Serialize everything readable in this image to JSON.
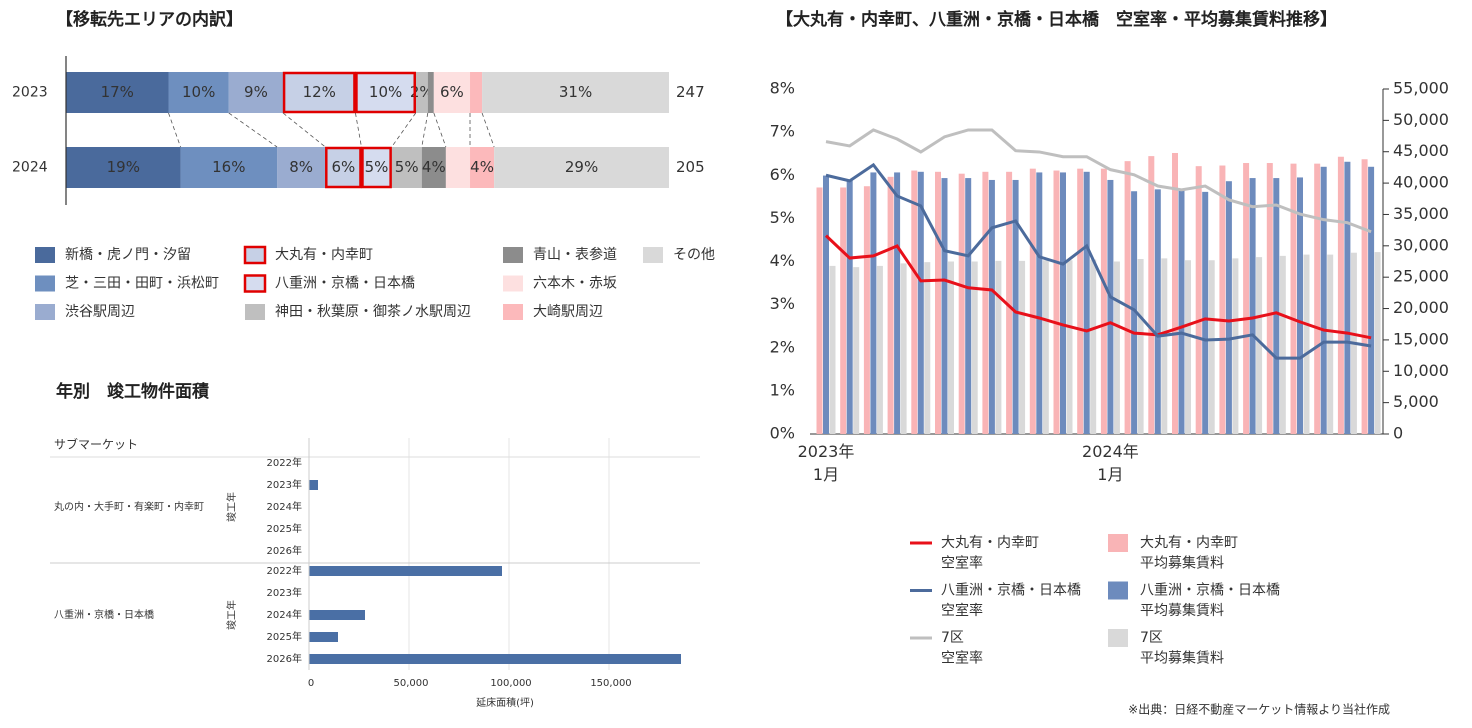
{
  "chart_data": [
    {
      "type": "stacked_bar_100",
      "title": "【移転先エリアの内訳】",
      "categories": [
        "2023",
        "2024"
      ],
      "totals": [
        247,
        205
      ],
      "series": [
        {
          "name": "新橋・虎ノ門・汐留",
          "color": "#4a6a9c",
          "values": [
            17,
            19
          ],
          "value_labels": [
            "17%",
            "19%"
          ]
        },
        {
          "name": "芝・三田・田町・浜松町",
          "color": "#6e8fbf",
          "values": [
            10,
            16
          ],
          "value_labels": [
            "10%",
            "16%"
          ]
        },
        {
          "name": "渋谷駅周辺",
          "color": "#9aacd0",
          "values": [
            9,
            8
          ],
          "value_labels": [
            "9%",
            "8%"
          ]
        },
        {
          "name": "大丸有・内幸町",
          "color": "#c6d0e6",
          "outline": "#e00000",
          "values": [
            12,
            6
          ],
          "value_labels": [
            "12%",
            "6%"
          ]
        },
        {
          "name": "八重洲・京橋・日本橋",
          "color": "#d5dcef",
          "outline": "#e00000",
          "values": [
            10,
            5
          ],
          "value_labels": [
            "10%",
            "5%"
          ]
        },
        {
          "name": "神田・秋葉原・御茶ノ水駅周辺",
          "color": "#bfbfbf",
          "values": [
            2,
            5
          ],
          "value_labels": [
            "2%",
            "5%"
          ]
        },
        {
          "name": "青山・表参道",
          "color": "#8c8c8c",
          "values": [
            1,
            4
          ],
          "value_labels": [
            null,
            "4%"
          ]
        },
        {
          "name": "六本木・赤坂",
          "color": "#fde0e0",
          "values": [
            6,
            4
          ],
          "value_labels": [
            "6%",
            null
          ]
        },
        {
          "name": "大崎駅周辺",
          "color": "#fcb9bb",
          "values": [
            2,
            4
          ],
          "value_labels": [
            null,
            "4%"
          ]
        },
        {
          "name": "その他",
          "color": "#d9d9d9",
          "values": [
            31,
            29
          ],
          "value_labels": [
            "31%",
            "29%"
          ]
        }
      ]
    },
    {
      "type": "grouped_hbar",
      "title": "年別　竣工物件面積",
      "header": "サブマーケット",
      "group_axis_label": "竣工年",
      "xlabel": "延床面積(坪)",
      "color": "#4a6fa5",
      "grid": true,
      "xlim": [
        0,
        195000
      ],
      "xticks": [
        0,
        {
          "value": 50000,
          "label": "50,000"
        },
        {
          "value": 100000,
          "label": "100,000"
        },
        {
          "value": 150000,
          "label": "150,000"
        }
      ],
      "groups": [
        {
          "name": "丸の内・大手町・有楽町・内幸町",
          "categories": [
            "2022年",
            "2023年",
            "2024年",
            "2025年",
            "2026年"
          ],
          "values": [
            null,
            4500,
            null,
            null,
            null
          ]
        },
        {
          "name": "八重洲・京橋・日本橋",
          "categories": [
            "2022年",
            "2023年",
            "2024年",
            "2025年",
            "2026年"
          ],
          "values": [
            96500,
            null,
            28000,
            14500,
            186000
          ]
        }
      ]
    },
    {
      "type": "combo",
      "title": "【大丸有・内幸町、八重洲・京橋・日本橋　空室率・平均募集賃料推移】",
      "source": "※出典：日経不動産マーケット情報より当社作成",
      "categories": [
        "2023年\n1月",
        null,
        null,
        null,
        null,
        null,
        null,
        null,
        null,
        null,
        null,
        null,
        "2024年\n1月",
        null,
        null,
        null,
        null,
        null,
        null,
        null,
        null,
        null,
        null,
        null
      ],
      "ylim": [
        0,
        8
      ],
      "yticks": [
        {
          "value": 0,
          "label": "0%"
        },
        {
          "value": 1,
          "label": "1%"
        },
        {
          "value": 2,
          "label": "2%"
        },
        {
          "value": 3,
          "label": "3%"
        },
        {
          "value": 4,
          "label": "4%"
        },
        {
          "value": 5,
          "label": "5%"
        },
        {
          "value": 6,
          "label": "6%"
        },
        {
          "value": 7,
          "label": "7%"
        },
        {
          "value": 8,
          "label": "8%"
        }
      ],
      "y2lim": [
        0,
        55000
      ],
      "y2ticks": [
        0,
        {
          "value": 5000,
          "label": "5,000"
        },
        {
          "value": 10000,
          "label": "10,000"
        },
        {
          "value": 15000,
          "label": "15,000"
        },
        {
          "value": 20000,
          "label": "20,000"
        },
        {
          "value": 25000,
          "label": "25,000"
        },
        {
          "value": 30000,
          "label": "30,000"
        },
        {
          "value": 35000,
          "label": "35,000"
        },
        {
          "value": 40000,
          "label": "40,000"
        },
        {
          "value": 45000,
          "label": "45,000"
        },
        {
          "value": 50000,
          "label": "50,000"
        },
        {
          "value": 55000,
          "label": "55,000"
        }
      ],
      "series": [
        {
          "name": "大丸有・内幸町\n空室率",
          "kind": "line",
          "axis": "y",
          "color": "#e8101a",
          "values": [
            4.6,
            4.08,
            4.13,
            4.36,
            3.55,
            3.57,
            3.39,
            3.34,
            2.83,
            2.69,
            2.53,
            2.39,
            2.58,
            2.34,
            2.3,
            2.48,
            2.67,
            2.62,
            2.69,
            2.81,
            2.6,
            2.41,
            2.34,
            2.23
          ]
        },
        {
          "name": "大丸有・内幸町\n平均募集賃料",
          "kind": "bar",
          "axis": "y2",
          "color": "#f9b4b6",
          "values": [
            39300,
            39300,
            39500,
            41000,
            42000,
            41800,
            41500,
            41800,
            41800,
            42300,
            42000,
            42300,
            42300,
            43500,
            44300,
            44800,
            42700,
            42800,
            43200,
            43200,
            43100,
            43100,
            44200,
            43800
          ]
        },
        {
          "name": "八重洲・京橋・日本橋\n空室率",
          "kind": "line",
          "axis": "y",
          "color": "#4c6b9c",
          "values": [
            6.0,
            5.87,
            6.24,
            5.52,
            5.29,
            4.25,
            4.13,
            4.78,
            4.94,
            4.11,
            3.94,
            4.36,
            3.18,
            2.88,
            2.27,
            2.34,
            2.18,
            2.2,
            2.3,
            1.76,
            1.76,
            2.13,
            2.13,
            2.04
          ]
        },
        {
          "name": "八重洲・京橋・日本橋\n平均募集賃料",
          "kind": "bar",
          "axis": "y2",
          "color": "#6d8bbd",
          "values": [
            41200,
            40400,
            41700,
            41700,
            41800,
            40800,
            40800,
            40500,
            40500,
            41700,
            41700,
            41800,
            40500,
            38700,
            39000,
            38900,
            38600,
            40300,
            40800,
            40800,
            40900,
            42600,
            43400,
            42600
          ]
        },
        {
          "name": "7区\n空室率",
          "kind": "line",
          "axis": "y",
          "color": "#bfbfbf",
          "values": [
            6.78,
            6.68,
            7.05,
            6.84,
            6.54,
            6.89,
            7.05,
            7.05,
            6.57,
            6.54,
            6.43,
            6.43,
            6.13,
            6.01,
            5.75,
            5.66,
            5.75,
            5.43,
            5.27,
            5.31,
            5.1,
            4.97,
            4.9,
            4.69
          ]
        },
        {
          "name": "7区\n平均募集賃料",
          "kind": "bar",
          "axis": "y2",
          "color": "#d9d9d9",
          "values": [
            26800,
            26600,
            26800,
            27200,
            27400,
            27500,
            27500,
            27600,
            27600,
            27700,
            27700,
            27800,
            27500,
            27900,
            28000,
            27700,
            27700,
            28000,
            28200,
            28400,
            28600,
            28600,
            28900,
            29000
          ]
        }
      ]
    }
  ]
}
